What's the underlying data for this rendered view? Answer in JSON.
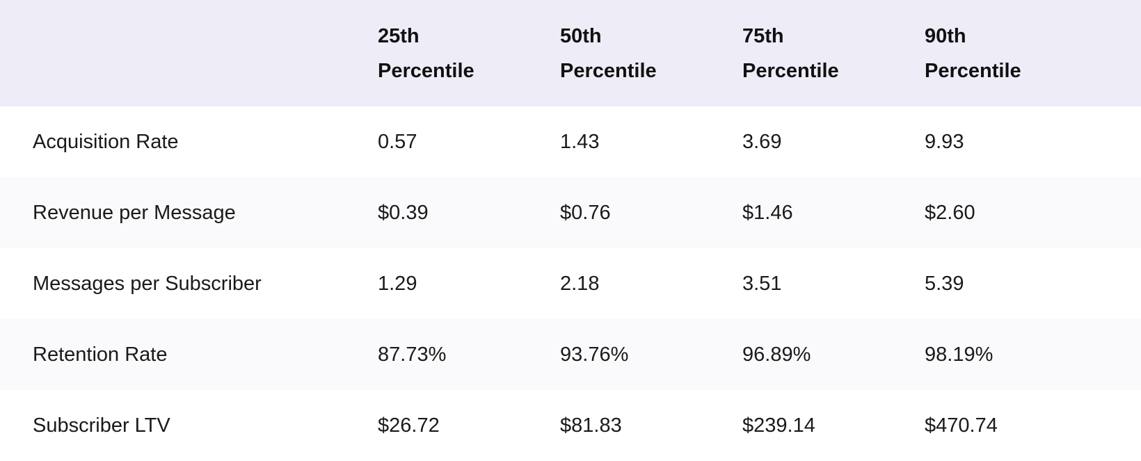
{
  "table": {
    "columns": [
      "",
      "25th Percentile",
      "50th Percentile",
      "75th Percentile",
      "90th Percentile"
    ],
    "rows": [
      {
        "label": "Acquisition Rate",
        "values": [
          "0.57",
          "1.43",
          "3.69",
          "9.93"
        ]
      },
      {
        "label": "Revenue per Message",
        "values": [
          "$0.39",
          "$0.76",
          "$1.46",
          "$2.60"
        ]
      },
      {
        "label": "Messages per Subscriber",
        "values": [
          "1.29",
          "2.18",
          "3.51",
          "5.39"
        ]
      },
      {
        "label": "Retention Rate",
        "values": [
          "87.73%",
          "93.76%",
          "96.89%",
          "98.19%"
        ]
      },
      {
        "label": "Subscriber LTV",
        "values": [
          "$26.72",
          "$81.83",
          "$239.14",
          "$470.74"
        ]
      }
    ]
  },
  "chart_data": {
    "type": "table",
    "title": "",
    "columns": [
      "",
      "25th Percentile",
      "50th Percentile",
      "75th Percentile",
      "90th Percentile"
    ],
    "rows": [
      [
        "Acquisition Rate",
        "0.57",
        "1.43",
        "3.69",
        "9.93"
      ],
      [
        "Revenue per Message",
        "$0.39",
        "$0.76",
        "$1.46",
        "$2.60"
      ],
      [
        "Messages per Subscriber",
        "1.29",
        "2.18",
        "3.51",
        "5.39"
      ],
      [
        "Retention Rate",
        "87.73%",
        "93.76%",
        "96.89%",
        "98.19%"
      ],
      [
        "Subscriber LTV",
        "$26.72",
        "$81.83",
        "$239.14",
        "$470.74"
      ]
    ],
    "layout_hints": {
      "striped_rows": true,
      "header_background": "#EEECF6",
      "alt_row_background": "#FAFAFC"
    }
  },
  "colors": {
    "header_bg": "#EEECF6",
    "row_bg": "#FFFFFF",
    "row_alt_bg": "#FAFAFC",
    "text": "#1A1A1A",
    "header_text": "#111111"
  }
}
